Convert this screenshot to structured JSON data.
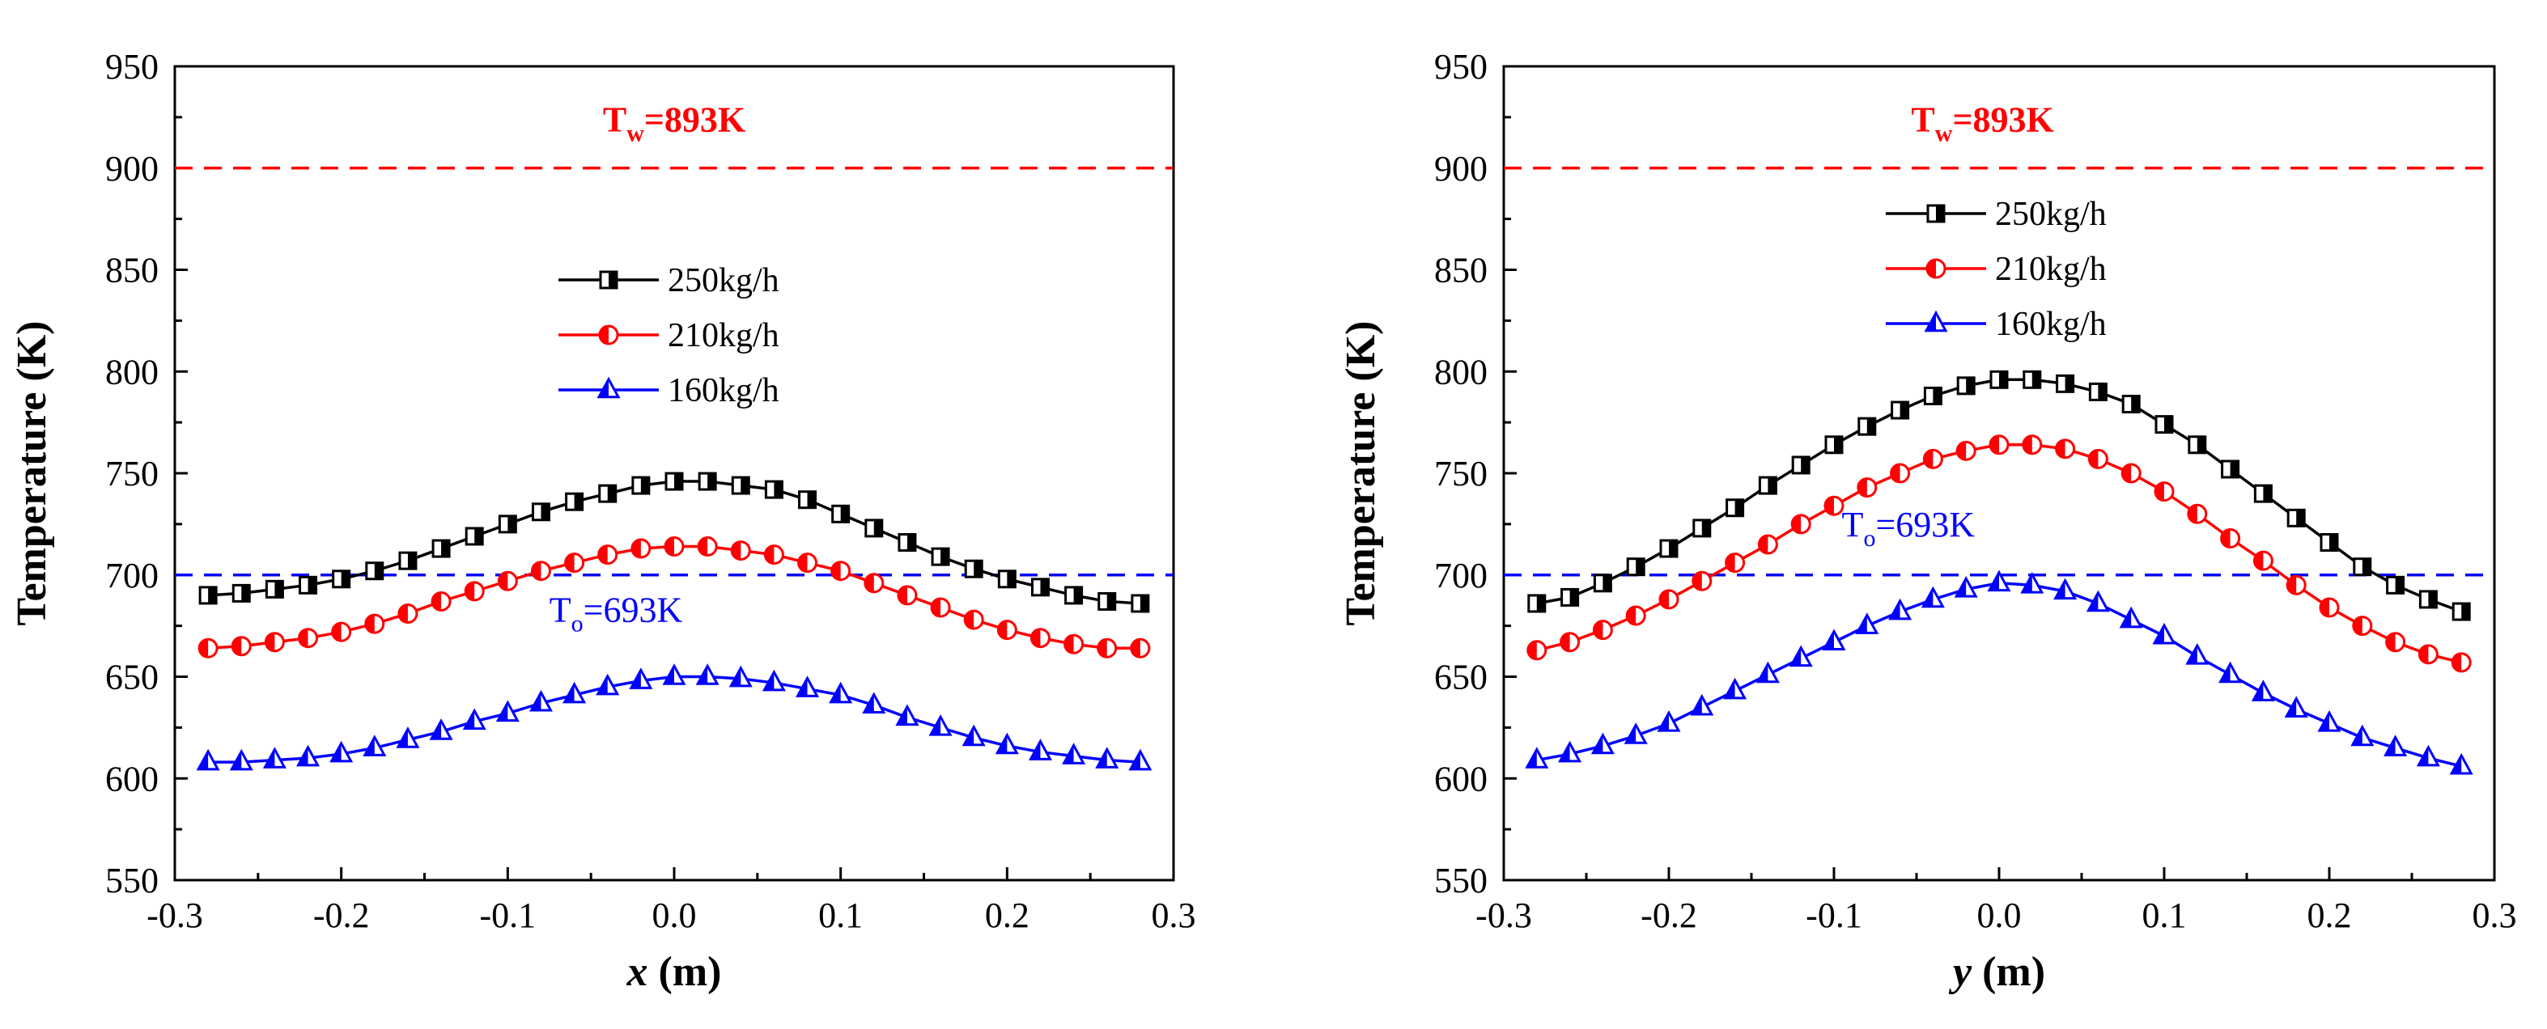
{
  "chart_data": [
    {
      "type": "line",
      "xlabel": "x (m)",
      "xlabel_var": "x",
      "xlabel_unit": " (m)",
      "ylabel": "Temperature (K)",
      "xlim": [
        -0.3,
        0.3
      ],
      "ylim": [
        550,
        950
      ],
      "xticks": [
        -0.3,
        -0.2,
        -0.1,
        0.0,
        0.1,
        0.2,
        0.3
      ],
      "xtick_labels": [
        "-0.3",
        "-0.2",
        "-0.1",
        "0.0",
        "0.1",
        "0.2",
        "0.3"
      ],
      "yticks": [
        550,
        600,
        650,
        700,
        750,
        800,
        850,
        900,
        950
      ],
      "ytick_labels": [
        "550",
        "600",
        "650",
        "700",
        "750",
        "800",
        "850",
        "900",
        "950"
      ],
      "legend_position": "center",
      "x": [
        -0.28,
        -0.26,
        -0.24,
        -0.22,
        -0.2,
        -0.18,
        -0.16,
        -0.14,
        -0.12,
        -0.1,
        -0.08,
        -0.06,
        -0.04,
        -0.02,
        0.0,
        0.02,
        0.04,
        0.06,
        0.08,
        0.1,
        0.12,
        0.14,
        0.16,
        0.18,
        0.2,
        0.22,
        0.24,
        0.26,
        0.28
      ],
      "series": [
        {
          "name": "250kg/h",
          "color": "#000000",
          "marker": "square",
          "values": [
            690,
            691,
            693,
            695,
            698,
            702,
            707,
            713,
            719,
            725,
            731,
            736,
            740,
            744,
            746,
            746,
            744,
            742,
            737,
            730,
            723,
            716,
            709,
            703,
            698,
            694,
            690,
            687,
            686
          ]
        },
        {
          "name": "210kg/h",
          "color": "#ff0000",
          "marker": "circle",
          "values": [
            664,
            665,
            667,
            669,
            672,
            676,
            681,
            687,
            692,
            697,
            702,
            706,
            710,
            713,
            714,
            714,
            712,
            710,
            706,
            702,
            696,
            690,
            684,
            678,
            673,
            669,
            666,
            664,
            664
          ]
        },
        {
          "name": "160kg/h",
          "color": "#0000ff",
          "marker": "triangle",
          "values": [
            608,
            608,
            609,
            610,
            612,
            615,
            619,
            623,
            628,
            632,
            637,
            641,
            645,
            648,
            650,
            650,
            649,
            647,
            644,
            641,
            636,
            630,
            625,
            620,
            616,
            613,
            611,
            609,
            608
          ]
        }
      ],
      "reference_lines": [
        {
          "value": 900,
          "color": "#ff0000",
          "label_main": "T",
          "label_sub": "w",
          "label_rest": "=893K",
          "label_x": 0.0,
          "label_y": 918,
          "bold": true
        },
        {
          "value": 700,
          "color": "#0000ff",
          "label_main": "T",
          "label_sub": "o",
          "label_rest": "=693K",
          "label_x": -0.035,
          "label_y": 677,
          "bold": false
        }
      ]
    },
    {
      "type": "line",
      "xlabel": "y (m)",
      "xlabel_var": "y",
      "xlabel_unit": " (m)",
      "ylabel": "Temperature (K)",
      "xlim": [
        -0.3,
        0.3
      ],
      "ylim": [
        550,
        950
      ],
      "xticks": [
        -0.3,
        -0.2,
        -0.1,
        0.0,
        0.1,
        0.2,
        0.3
      ],
      "xtick_labels": [
        "-0.3",
        "-0.2",
        "-0.1",
        "0.0",
        "0.1",
        "0.2",
        "0.3"
      ],
      "yticks": [
        550,
        600,
        650,
        700,
        750,
        800,
        850,
        900,
        950
      ],
      "ytick_labels": [
        "550",
        "600",
        "650",
        "700",
        "750",
        "800",
        "850",
        "900",
        "950"
      ],
      "legend_position": "top-center",
      "x": [
        -0.28,
        -0.26,
        -0.24,
        -0.22,
        -0.2,
        -0.18,
        -0.16,
        -0.14,
        -0.12,
        -0.1,
        -0.08,
        -0.06,
        -0.04,
        -0.02,
        0.0,
        0.02,
        0.04,
        0.06,
        0.08,
        0.1,
        0.12,
        0.14,
        0.16,
        0.18,
        0.2,
        0.22,
        0.24,
        0.26,
        0.28
      ],
      "series": [
        {
          "name": "250kg/h",
          "color": "#000000",
          "marker": "square",
          "values": [
            686,
            689,
            696,
            704,
            713,
            723,
            733,
            744,
            754,
            764,
            773,
            781,
            788,
            793,
            796,
            796,
            794,
            790,
            784,
            774,
            764,
            752,
            740,
            728,
            716,
            704,
            695,
            688,
            682
          ]
        },
        {
          "name": "210kg/h",
          "color": "#ff0000",
          "marker": "circle",
          "values": [
            663,
            667,
            673,
            680,
            688,
            697,
            706,
            715,
            725,
            734,
            743,
            750,
            757,
            761,
            764,
            764,
            762,
            757,
            750,
            741,
            730,
            718,
            707,
            695,
            684,
            675,
            667,
            661,
            657
          ]
        },
        {
          "name": "160kg/h",
          "color": "#0000ff",
          "marker": "triangle",
          "values": [
            609,
            612,
            616,
            621,
            627,
            635,
            643,
            651,
            659,
            667,
            675,
            682,
            688,
            693,
            696,
            695,
            692,
            686,
            678,
            670,
            660,
            651,
            642,
            634,
            627,
            620,
            615,
            610,
            606
          ]
        }
      ],
      "reference_lines": [
        {
          "value": 900,
          "color": "#ff0000",
          "label_main": "T",
          "label_sub": "w",
          "label_rest": "=893K",
          "label_x": -0.01,
          "label_y": 918,
          "bold": true
        },
        {
          "value": 700,
          "color": "#0000ff",
          "label_main": "T",
          "label_sub": "o",
          "label_rest": "=693K",
          "label_x": -0.055,
          "label_y": 719,
          "bold": false
        }
      ]
    }
  ]
}
